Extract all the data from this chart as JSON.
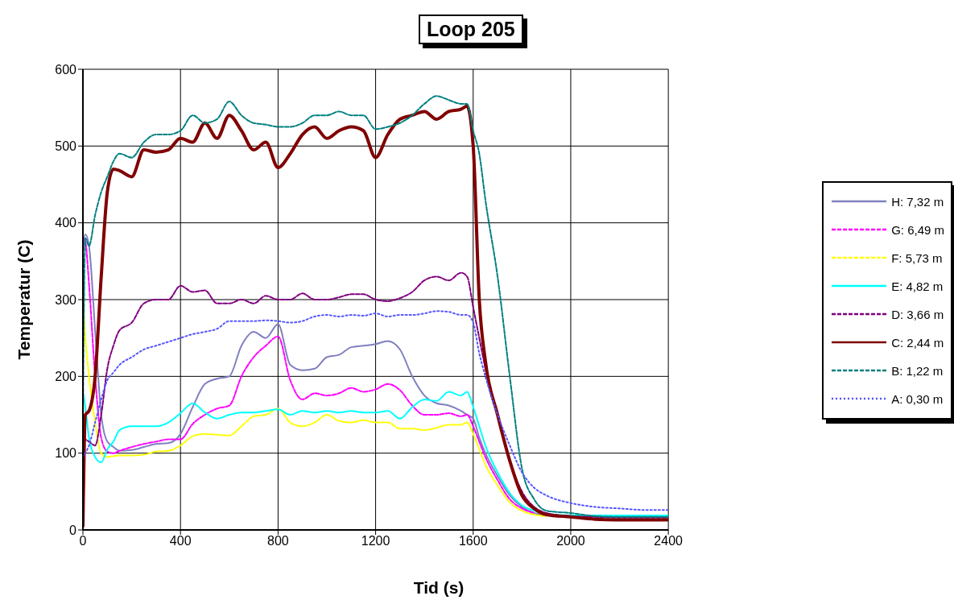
{
  "chart_data": {
    "type": "line",
    "title": "Loop 205",
    "xlabel": "Tid (s)",
    "ylabel": "Temperatur (C)",
    "x": [
      0,
      10,
      25,
      50,
      75,
      100,
      125,
      150,
      200,
      250,
      300,
      350,
      400,
      450,
      500,
      550,
      600,
      650,
      700,
      750,
      800,
      850,
      900,
      950,
      1000,
      1050,
      1100,
      1150,
      1200,
      1250,
      1300,
      1350,
      1400,
      1450,
      1500,
      1550,
      1575,
      1600,
      1625,
      1650,
      1700,
      1750,
      1800,
      1850,
      1900,
      2000,
      2100,
      2200,
      2300,
      2400
    ],
    "series": [
      {
        "name": "H: 7,32 m",
        "color": "#8080c0",
        "line_style": "solid",
        "values": [
          360,
          385,
          370,
          260,
          150,
          115,
          108,
          103,
          104,
          108,
          112,
          113,
          125,
          160,
          190,
          197,
          200,
          240,
          258,
          250,
          268,
          215,
          208,
          210,
          225,
          228,
          238,
          240,
          242,
          246,
          235,
          200,
          175,
          165,
          162,
          155,
          150,
          145,
          120,
          100,
          70,
          45,
          30,
          22,
          19,
          17,
          null,
          null,
          null,
          null
        ]
      },
      {
        "name": "G: 6,49 m",
        "color": "#ff00ff",
        "line_style": "dashed",
        "values": [
          380,
          375,
          320,
          200,
          120,
          102,
          100,
          103,
          108,
          112,
          115,
          118,
          118,
          138,
          150,
          158,
          162,
          200,
          225,
          240,
          252,
          195,
          170,
          178,
          175,
          178,
          185,
          180,
          183,
          190,
          182,
          162,
          150,
          150,
          152,
          148,
          150,
          135,
          115,
          95,
          65,
          40,
          28,
          22,
          null,
          null,
          null,
          null,
          null,
          null
        ]
      },
      {
        "name": "F: 5,73 m",
        "color": "#ffff00",
        "line_style": "dashed",
        "values": [
          300,
          250,
          200,
          140,
          100,
          95,
          96,
          97,
          97,
          98,
          102,
          103,
          110,
          122,
          125,
          124,
          123,
          135,
          148,
          150,
          158,
          140,
          135,
          140,
          150,
          142,
          140,
          143,
          140,
          140,
          132,
          132,
          130,
          133,
          137,
          137,
          140,
          125,
          105,
          85,
          58,
          36,
          25,
          20,
          18,
          null,
          null,
          null,
          null,
          null
        ]
      },
      {
        "name": "E: 4,82 m",
        "color": "#00ffff",
        "line_style": "solid",
        "values": [
          180,
          160,
          120,
          95,
          88,
          105,
          115,
          130,
          135,
          135,
          135,
          140,
          152,
          165,
          153,
          145,
          150,
          153,
          153,
          155,
          157,
          150,
          155,
          153,
          155,
          153,
          155,
          153,
          153,
          155,
          145,
          160,
          170,
          168,
          180,
          175,
          180,
          160,
          135,
          110,
          75,
          48,
          32,
          25,
          21,
          19,
          19,
          19,
          19,
          19
        ]
      },
      {
        "name": "D: 3,66 m",
        "color": "#800080",
        "line_style": "dashed",
        "values": [
          120,
          118,
          115,
          110,
          150,
          210,
          240,
          260,
          270,
          295,
          300,
          300,
          318,
          310,
          312,
          295,
          295,
          300,
          295,
          305,
          300,
          300,
          308,
          300,
          300,
          303,
          307,
          307,
          300,
          298,
          302,
          310,
          325,
          330,
          325,
          335,
          330,
          290,
          250,
          210,
          150,
          90,
          50,
          30,
          22,
          18,
          17,
          16,
          16,
          16
        ]
      },
      {
        "name": "C: 2,44 m",
        "color": "#800000",
        "line_style": "solid",
        "values": [
          5,
          150,
          155,
          200,
          330,
          440,
          470,
          468,
          460,
          495,
          492,
          495,
          510,
          505,
          530,
          510,
          540,
          520,
          495,
          505,
          472,
          490,
          515,
          525,
          510,
          520,
          525,
          520,
          485,
          515,
          535,
          540,
          545,
          535,
          545,
          548,
          552,
          500,
          300,
          220,
          150,
          90,
          45,
          28,
          20,
          17,
          14,
          13,
          13,
          13
        ]
      },
      {
        "name": "B: 1,22 m",
        "color": "#008080",
        "line_style": "dashed",
        "values": [
          150,
          380,
          370,
          410,
          440,
          460,
          480,
          490,
          485,
          505,
          515,
          515,
          520,
          540,
          530,
          535,
          558,
          540,
          530,
          528,
          525,
          525,
          530,
          540,
          540,
          545,
          540,
          540,
          522,
          525,
          530,
          540,
          555,
          565,
          560,
          555,
          555,
          520,
          490,
          430,
          330,
          200,
          80,
          40,
          25,
          22,
          18,
          17,
          17,
          17
        ]
      },
      {
        "name": "A: 0,30 m",
        "color": "#5555ff",
        "line_style": "dotted",
        "values": [
          95,
          100,
          110,
          140,
          170,
          195,
          205,
          215,
          225,
          235,
          240,
          245,
          250,
          255,
          258,
          262,
          272,
          272,
          272,
          273,
          272,
          270,
          272,
          278,
          280,
          278,
          280,
          279,
          282,
          278,
          280,
          280,
          282,
          285,
          284,
          280,
          280,
          270,
          230,
          200,
          150,
          110,
          75,
          55,
          45,
          35,
          30,
          28,
          26,
          26
        ]
      }
    ],
    "xlim": [
      0,
      2400
    ],
    "xticks": [
      0,
      400,
      800,
      1200,
      1600,
      2000,
      2400
    ],
    "ylim": [
      0,
      600
    ],
    "yticks": [
      0,
      100,
      200,
      300,
      400,
      500,
      600
    ],
    "grid": true,
    "legend": "right"
  }
}
